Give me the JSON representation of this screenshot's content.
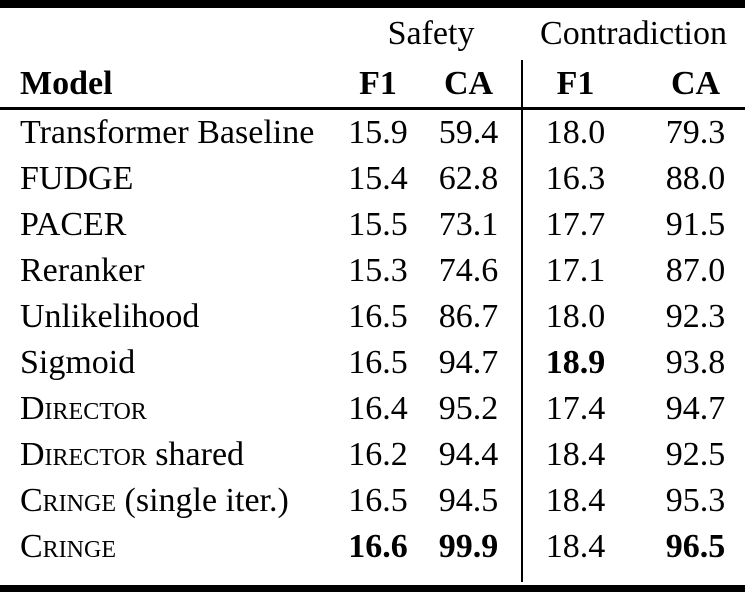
{
  "figure": {
    "groups": [
      {
        "label": "Safety"
      },
      {
        "label": "Contradiction"
      }
    ],
    "columns": [
      "Model",
      "F1",
      "CA",
      "F1",
      "CA"
    ],
    "rows": [
      {
        "model": [
          {
            "text": "Transformer Baseline",
            "sc": false
          }
        ],
        "values": [
          {
            "v": "15.9",
            "bold": false
          },
          {
            "v": "59.4",
            "bold": false
          },
          {
            "v": "18.0",
            "bold": false
          },
          {
            "v": "79.3",
            "bold": false
          }
        ]
      },
      {
        "model": [
          {
            "text": "FUDGE",
            "sc": false
          }
        ],
        "values": [
          {
            "v": "15.4",
            "bold": false
          },
          {
            "v": "62.8",
            "bold": false
          },
          {
            "v": "16.3",
            "bold": false
          },
          {
            "v": "88.0",
            "bold": false
          }
        ]
      },
      {
        "model": [
          {
            "text": "PACER",
            "sc": false
          }
        ],
        "values": [
          {
            "v": "15.5",
            "bold": false
          },
          {
            "v": "73.1",
            "bold": false
          },
          {
            "v": "17.7",
            "bold": false
          },
          {
            "v": "91.5",
            "bold": false
          }
        ]
      },
      {
        "model": [
          {
            "text": "Reranker",
            "sc": false
          }
        ],
        "values": [
          {
            "v": "15.3",
            "bold": false
          },
          {
            "v": "74.6",
            "bold": false
          },
          {
            "v": "17.1",
            "bold": false
          },
          {
            "v": "87.0",
            "bold": false
          }
        ]
      },
      {
        "model": [
          {
            "text": "Unlikelihood",
            "sc": false
          }
        ],
        "values": [
          {
            "v": "16.5",
            "bold": false
          },
          {
            "v": "86.7",
            "bold": false
          },
          {
            "v": "18.0",
            "bold": false
          },
          {
            "v": "92.3",
            "bold": false
          }
        ]
      },
      {
        "model": [
          {
            "text": "Sigmoid",
            "sc": false
          }
        ],
        "values": [
          {
            "v": "16.5",
            "bold": false
          },
          {
            "v": "94.7",
            "bold": false
          },
          {
            "v": "18.9",
            "bold": true
          },
          {
            "v": "93.8",
            "bold": false
          }
        ]
      },
      {
        "model": [
          {
            "text": "Director",
            "sc": true
          }
        ],
        "values": [
          {
            "v": "16.4",
            "bold": false
          },
          {
            "v": "95.2",
            "bold": false
          },
          {
            "v": "17.4",
            "bold": false
          },
          {
            "v": "94.7",
            "bold": false
          }
        ]
      },
      {
        "model": [
          {
            "text": "Director",
            "sc": true
          },
          {
            "text": " shared",
            "sc": false
          }
        ],
        "values": [
          {
            "v": "16.2",
            "bold": false
          },
          {
            "v": "94.4",
            "bold": false
          },
          {
            "v": "18.4",
            "bold": false
          },
          {
            "v": "92.5",
            "bold": false
          }
        ]
      },
      {
        "model": [
          {
            "text": "Cringe",
            "sc": true
          },
          {
            "text": " (single iter.)",
            "sc": false
          }
        ],
        "values": [
          {
            "v": "16.5",
            "bold": false
          },
          {
            "v": "94.5",
            "bold": false
          },
          {
            "v": "18.4",
            "bold": false
          },
          {
            "v": "95.3",
            "bold": false
          }
        ]
      },
      {
        "model": [
          {
            "text": "Cringe",
            "sc": true
          }
        ],
        "values": [
          {
            "v": "16.6",
            "bold": true
          },
          {
            "v": "99.9",
            "bold": true
          },
          {
            "v": "18.4",
            "bold": false
          },
          {
            "v": "96.5",
            "bold": true
          }
        ]
      }
    ],
    "colors": {
      "text": "#000000",
      "rule": "#000000",
      "background": "#ffffff"
    }
  }
}
